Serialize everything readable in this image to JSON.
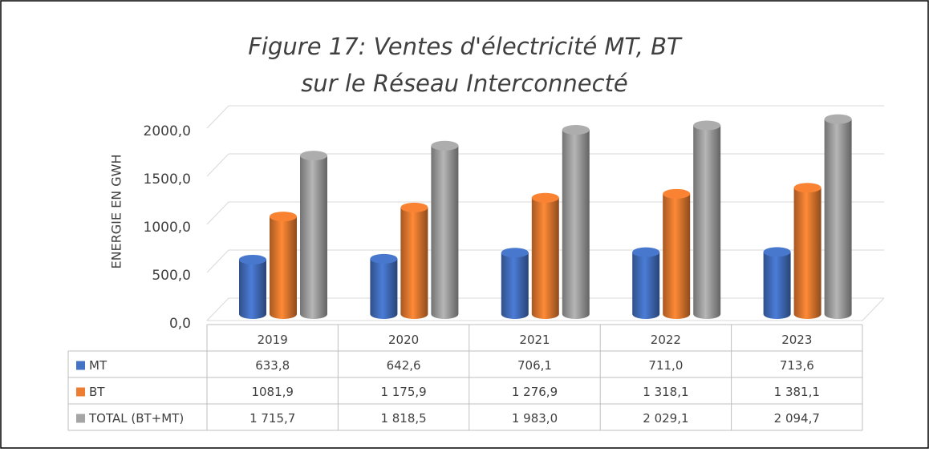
{
  "chart_data": {
    "type": "bar3d",
    "title": "Figure 17: Ventes d'électricité MT, BT",
    "subtitle": "sur le Réseau Interconnecté",
    "y_label": "ENERGIE EN GWH",
    "categories": [
      "2019",
      "2020",
      "2021",
      "2022",
      "2023"
    ],
    "series": [
      {
        "name": "MT",
        "color": "#4472c4",
        "values": [
          633.8,
          642.6,
          706.1,
          711.0,
          713.6
        ],
        "value_labels": [
          "633,8",
          "642,6",
          "706,1",
          "711,0",
          "713,6"
        ]
      },
      {
        "name": "BT",
        "color": "#ed7d31",
        "values": [
          1081.9,
          1175.9,
          1276.9,
          1318.1,
          1381.1
        ],
        "value_labels": [
          "1081,9",
          "1 175,9",
          "1 276,9",
          "1 318,1",
          "1 381,1"
        ]
      },
      {
        "name": "TOTAL (BT+MT)",
        "color": "#a5a5a5",
        "values": [
          1715.7,
          1818.5,
          1983.0,
          2029.1,
          2094.7
        ],
        "value_labels": [
          "1 715,7",
          "1 818,5",
          "1 983,0",
          "2 029,1",
          "2 094,7"
        ]
      }
    ],
    "ylim": [
      0,
      2200
    ],
    "yticks": [
      {
        "value": 0,
        "label": "0,0"
      },
      {
        "value": 500,
        "label": "500,0"
      },
      {
        "value": 1000,
        "label": "1000,0"
      },
      {
        "value": 1500,
        "label": "1500,0"
      },
      {
        "value": 2000,
        "label": "2000,0"
      }
    ],
    "grid": true
  }
}
